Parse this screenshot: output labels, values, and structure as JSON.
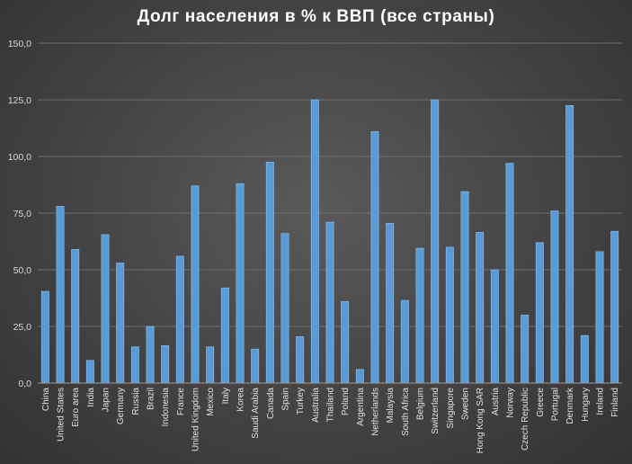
{
  "chart_data": {
    "type": "bar",
    "title": "Долг населения в % к ВВП (все страны)",
    "xlabel": "",
    "ylabel": "",
    "ylim": [
      0,
      150
    ],
    "yticks": [
      "0,0",
      "25,0",
      "50,0",
      "75,0",
      "100,0",
      "125,0",
      "150,0"
    ],
    "grid": true,
    "legend": "none",
    "bar_color": "#5b9bd5",
    "categories": [
      "China",
      "United States",
      "Euro area",
      "India",
      "Japan",
      "Germany",
      "Russia",
      "Brazil",
      "Indonesia",
      "France",
      "United Kingdom",
      "Mexico",
      "Italy",
      "Korea",
      "Saudi Arabia",
      "Canada",
      "Spain",
      "Turkey",
      "Australia",
      "Thailand",
      "Poland",
      "Argentina",
      "Netherlands",
      "Malaysia",
      "South Africa",
      "Belgium",
      "Switzerland",
      "Singapore",
      "Sweden",
      "Hong Kong SAR",
      "Austria",
      "Norway",
      "Czech Republic",
      "Greece",
      "Portugal",
      "Denmark",
      "Hungary",
      "Ireland",
      "Finland"
    ],
    "values": [
      40.5,
      78,
      59,
      10,
      65.5,
      53,
      16,
      25,
      16.5,
      56,
      87,
      16,
      42,
      88,
      15,
      97.5,
      66,
      20.5,
      125,
      71,
      36,
      6,
      111,
      70.5,
      36.5,
      59.5,
      125,
      60,
      84.5,
      66.5,
      50,
      97,
      30,
      62,
      76,
      122.5,
      21,
      58,
      67
    ]
  }
}
